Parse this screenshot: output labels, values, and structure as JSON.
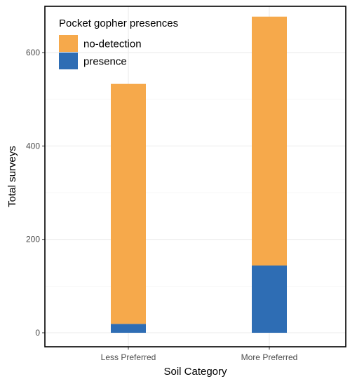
{
  "chart_data": {
    "type": "bar",
    "stacked": true,
    "categories": [
      "Less Preferred",
      "More Preferred"
    ],
    "series": [
      {
        "name": "presence",
        "values": [
          19,
          144
        ],
        "color": "#2e6db4"
      },
      {
        "name": "no-detection",
        "values": [
          514,
          533
        ],
        "color": "#f6a94b"
      }
    ],
    "xlabel": "Soil Category",
    "ylabel": "Total surveys",
    "ylim": [
      0,
      700
    ],
    "yticks": [
      0,
      200,
      400,
      600
    ],
    "grid": true,
    "legend": {
      "title": "Pocket gopher presences",
      "position": "top-left",
      "order": [
        "no-detection",
        "presence"
      ]
    }
  }
}
